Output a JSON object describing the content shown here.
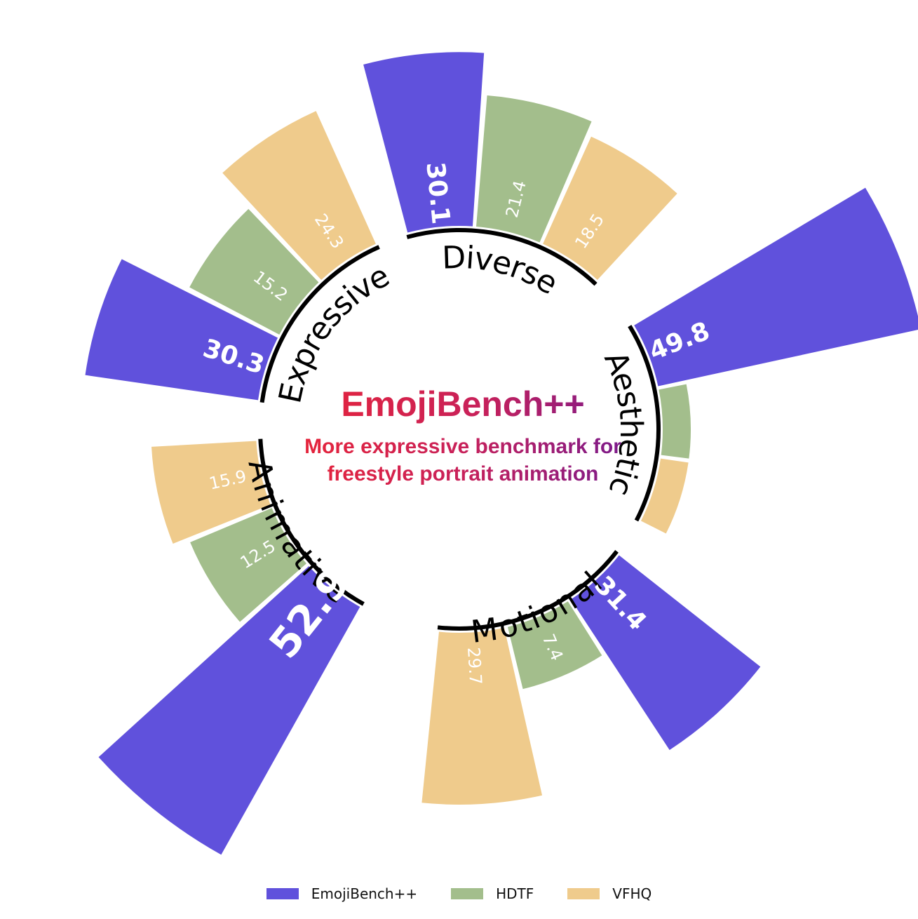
{
  "chart_data": {
    "type": "bar",
    "polar": true,
    "title": "EmojiBench++",
    "subtitle": "More expressive benchmark for freestyle portrait animation",
    "categories": [
      "Diverse",
      "Aesthetic",
      "Motional",
      "Animative",
      "Expressive"
    ],
    "series": [
      {
        "name": "EmojiBench++",
        "color": "#6051dc",
        "values": [
          30.1,
          49.8,
          31.4,
          52.9,
          30.3
        ]
      },
      {
        "name": "HDTF",
        "color": "#a3be8c",
        "values": [
          21.4,
          0,
          7.4,
          12.5,
          15.2
        ]
      },
      {
        "name": "VFHQ",
        "color": "#efcb8c",
        "values": [
          18.5,
          0,
          29.7,
          15.9,
          24.3
        ]
      }
    ]
  }
}
